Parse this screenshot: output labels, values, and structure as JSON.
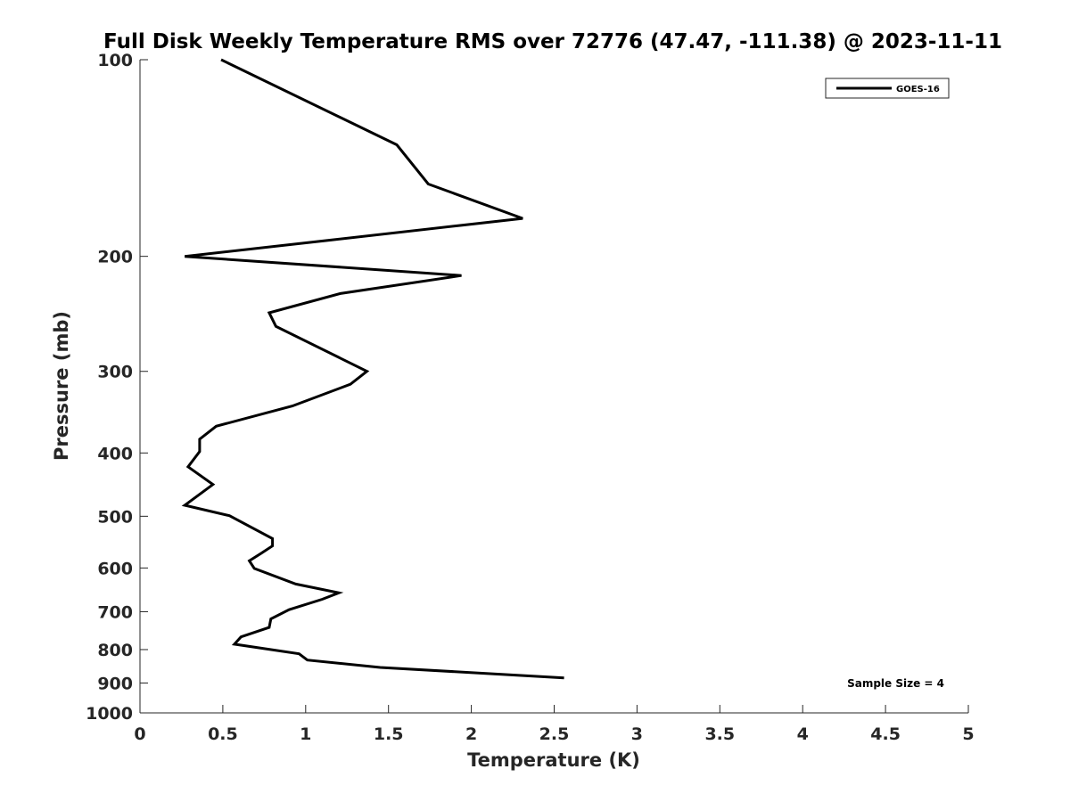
{
  "chart_data": {
    "type": "line",
    "title": "Full Disk Weekly Temperature RMS over 72776 (47.47, -111.38) @ 2023-11-11",
    "xlabel": "Temperature (K)",
    "ylabel": "Pressure (mb)",
    "xlim": [
      0,
      5
    ],
    "ylim": [
      100,
      1000
    ],
    "y_scale": "log",
    "y_reversed": true,
    "grid": false,
    "legend_position": "top-right",
    "x_ticks": [
      "0",
      "0.5",
      "1",
      "1.5",
      "2",
      "2.5",
      "3",
      "3.5",
      "4",
      "4.5",
      "5"
    ],
    "y_ticks": [
      "100",
      "200",
      "300",
      "400",
      "500",
      "600",
      "700",
      "800",
      "900",
      "1000"
    ],
    "series": [
      {
        "name": "GOES-16",
        "color": "#000000",
        "points": [
          [
            0.49,
            100
          ],
          [
            1.55,
            135
          ],
          [
            1.74,
            155
          ],
          [
            2.31,
            175
          ],
          [
            1.14,
            189
          ],
          [
            0.27,
            200
          ],
          [
            1.94,
            214
          ],
          [
            1.21,
            228
          ],
          [
            0.78,
            244
          ],
          [
            0.82,
            256
          ],
          [
            1.37,
            300
          ],
          [
            1.27,
            314
          ],
          [
            0.92,
            339
          ],
          [
            0.46,
            364
          ],
          [
            0.36,
            381
          ],
          [
            0.36,
            398
          ],
          [
            0.29,
            420
          ],
          [
            0.44,
            447
          ],
          [
            0.27,
            481
          ],
          [
            0.54,
            499
          ],
          [
            0.8,
            541
          ],
          [
            0.8,
            555
          ],
          [
            0.73,
            570
          ],
          [
            0.66,
            585
          ],
          [
            0.69,
            601
          ],
          [
            0.94,
            635
          ],
          [
            1.2,
            655
          ],
          [
            1.1,
            670
          ],
          [
            0.9,
            695
          ],
          [
            0.79,
            718
          ],
          [
            0.78,
            740
          ],
          [
            0.61,
            765
          ],
          [
            0.57,
            785
          ],
          [
            0.96,
            812
          ],
          [
            1.01,
            830
          ],
          [
            1.45,
            852
          ],
          [
            2.56,
            884
          ]
        ]
      }
    ],
    "annotations": [
      "Sample Size = 4"
    ]
  }
}
